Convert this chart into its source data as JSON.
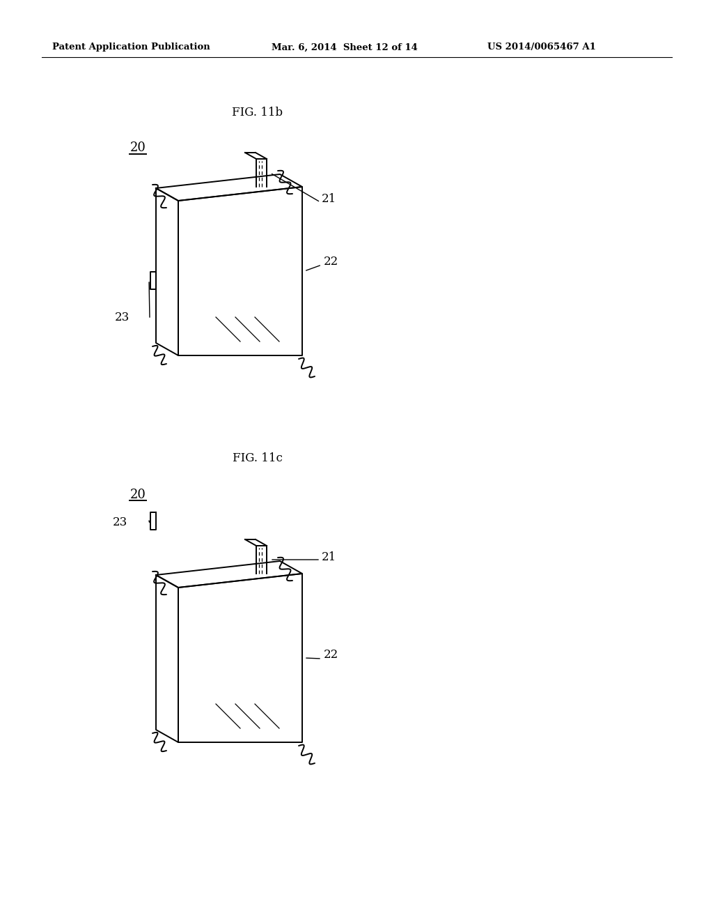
{
  "background_color": "#ffffff",
  "header_left": "Patent Application Publication",
  "header_mid": "Mar. 6, 2014  Sheet 12 of 14",
  "header_right": "US 2014/0065467 A1",
  "fig11b_label": "FIG. 11b",
  "fig11c_label": "FIG. 11c",
  "ref20_label": "20",
  "ref21_label": "21",
  "ref22_label": "22",
  "ref23_label": "23",
  "line_color": "#000000",
  "lw": 1.4
}
